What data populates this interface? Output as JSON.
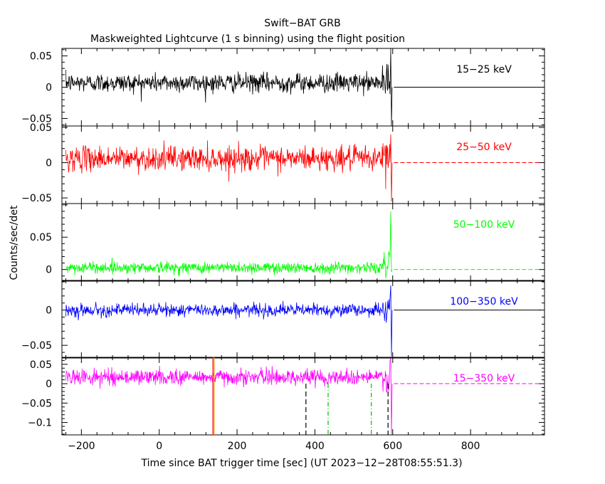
{
  "chart_data": {
    "type": "line",
    "title": "Swift−BAT GRB",
    "subtitle": "Maskweighted Lightcurve (1 s binning) using the flight position",
    "xlabel": "Time since BAT trigger time [sec] (UT 2023−12−28T08:55:51.3)",
    "ylabel": "Counts/sec/det",
    "xlim": [
      -250,
      990
    ],
    "x_ticks": [
      -200,
      0,
      200,
      400,
      600,
      800
    ],
    "x_tick_labels": [
      "−200",
      "0",
      "200",
      "400",
      "600",
      "800"
    ],
    "panels": [
      {
        "band": "15−25 keV",
        "color": "#000000",
        "ylim": [
          -0.062,
          0.062
        ],
        "y_ticks": [
          0.05,
          0,
          -0.05
        ],
        "y_tick_labels": [
          "0.05",
          "0",
          "−0.05"
        ],
        "noise_sd": 0.0075,
        "bias": 0.007,
        "zero_line": "solid",
        "zero_color": "#000000",
        "end_spike": [
          0.065,
          -0.062
        ]
      },
      {
        "band": "25−50 keV",
        "color": "#ff0000",
        "ylim": [
          -0.058,
          0.052
        ],
        "y_ticks": [
          0.05,
          0,
          -0.05
        ],
        "y_tick_labels": [
          "0.05",
          "0",
          "−0.05"
        ],
        "noise_sd": 0.0085,
        "bias": 0.006,
        "zero_line": "dashed",
        "zero_color": "#ff0000",
        "end_spike": [
          0.04,
          -0.055
        ]
      },
      {
        "band": "50−100 keV",
        "color": "#00ff00",
        "ylim": [
          -0.018,
          0.102
        ],
        "y_ticks": [
          0.05,
          0
        ],
        "y_tick_labels": [
          "0.05",
          "0"
        ],
        "noise_sd": 0.0045,
        "bias": 0.003,
        "zero_line": "dashed",
        "zero_color": "#00ff00",
        "end_spike": [
          0.09,
          -0.004
        ]
      },
      {
        "band": "100−350 keV",
        "color": "#0000ff",
        "ylim": [
          -0.068,
          0.042
        ],
        "y_ticks": [
          0,
          -0.05
        ],
        "y_tick_labels": [
          "0",
          "−0.05"
        ],
        "noise_sd": 0.0045,
        "bias": 0.0,
        "zero_line": "solid",
        "zero_color": "#000000",
        "end_spike": [
          0.035,
          -0.066
        ]
      },
      {
        "band": "15−350 keV",
        "color": "#ff00ff",
        "ylim": [
          -0.132,
          0.068
        ],
        "y_ticks": [
          0.05,
          0,
          -0.05,
          -0.1
        ],
        "y_tick_labels": [
          "0.05",
          "0",
          "−0.05",
          "−0.1"
        ],
        "noise_sd": 0.01,
        "bias": 0.017,
        "zero_line": "dashed",
        "zero_color": "#ff00ff",
        "end_spike": [
          0.065,
          -0.13
        ],
        "markers": [
          {
            "x": 138,
            "color": "#ff0000",
            "style": "solid"
          },
          {
            "x": 141,
            "color": "#ff8c00",
            "style": "solid"
          },
          {
            "x": 377,
            "color": "#000000",
            "style": "dashed"
          },
          {
            "x": 434,
            "color": "#00c000",
            "style": "dashdot"
          },
          {
            "x": 545,
            "color": "#00c000",
            "style": "dashdot"
          },
          {
            "x": 588,
            "color": "#000000",
            "style": "dashed"
          }
        ]
      }
    ],
    "data_range": [
      -240,
      603
    ],
    "zero_line_extent": [
      603,
      980
    ]
  }
}
